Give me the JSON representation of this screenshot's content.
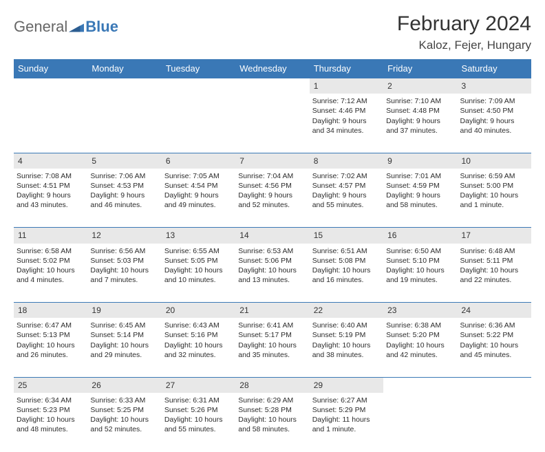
{
  "logo": {
    "text1": "General",
    "text2": "Blue"
  },
  "title": "February 2024",
  "location": "Kaloz, Fejer, Hungary",
  "colors": {
    "header_bg": "#3a78b6",
    "daynum_bg": "#e8e8e8",
    "rule": "#3a78b6"
  },
  "weekdays": [
    "Sunday",
    "Monday",
    "Tuesday",
    "Wednesday",
    "Thursday",
    "Friday",
    "Saturday"
  ],
  "weeks": [
    {
      "nums": [
        "",
        "",
        "",
        "",
        "1",
        "2",
        "3"
      ],
      "cells": [
        null,
        null,
        null,
        null,
        {
          "sunrise": "Sunrise: 7:12 AM",
          "sunset": "Sunset: 4:46 PM",
          "daylight1": "Daylight: 9 hours",
          "daylight2": "and 34 minutes."
        },
        {
          "sunrise": "Sunrise: 7:10 AM",
          "sunset": "Sunset: 4:48 PM",
          "daylight1": "Daylight: 9 hours",
          "daylight2": "and 37 minutes."
        },
        {
          "sunrise": "Sunrise: 7:09 AM",
          "sunset": "Sunset: 4:50 PM",
          "daylight1": "Daylight: 9 hours",
          "daylight2": "and 40 minutes."
        }
      ]
    },
    {
      "nums": [
        "4",
        "5",
        "6",
        "7",
        "8",
        "9",
        "10"
      ],
      "cells": [
        {
          "sunrise": "Sunrise: 7:08 AM",
          "sunset": "Sunset: 4:51 PM",
          "daylight1": "Daylight: 9 hours",
          "daylight2": "and 43 minutes."
        },
        {
          "sunrise": "Sunrise: 7:06 AM",
          "sunset": "Sunset: 4:53 PM",
          "daylight1": "Daylight: 9 hours",
          "daylight2": "and 46 minutes."
        },
        {
          "sunrise": "Sunrise: 7:05 AM",
          "sunset": "Sunset: 4:54 PM",
          "daylight1": "Daylight: 9 hours",
          "daylight2": "and 49 minutes."
        },
        {
          "sunrise": "Sunrise: 7:04 AM",
          "sunset": "Sunset: 4:56 PM",
          "daylight1": "Daylight: 9 hours",
          "daylight2": "and 52 minutes."
        },
        {
          "sunrise": "Sunrise: 7:02 AM",
          "sunset": "Sunset: 4:57 PM",
          "daylight1": "Daylight: 9 hours",
          "daylight2": "and 55 minutes."
        },
        {
          "sunrise": "Sunrise: 7:01 AM",
          "sunset": "Sunset: 4:59 PM",
          "daylight1": "Daylight: 9 hours",
          "daylight2": "and 58 minutes."
        },
        {
          "sunrise": "Sunrise: 6:59 AM",
          "sunset": "Sunset: 5:00 PM",
          "daylight1": "Daylight: 10 hours",
          "daylight2": "and 1 minute."
        }
      ]
    },
    {
      "nums": [
        "11",
        "12",
        "13",
        "14",
        "15",
        "16",
        "17"
      ],
      "cells": [
        {
          "sunrise": "Sunrise: 6:58 AM",
          "sunset": "Sunset: 5:02 PM",
          "daylight1": "Daylight: 10 hours",
          "daylight2": "and 4 minutes."
        },
        {
          "sunrise": "Sunrise: 6:56 AM",
          "sunset": "Sunset: 5:03 PM",
          "daylight1": "Daylight: 10 hours",
          "daylight2": "and 7 minutes."
        },
        {
          "sunrise": "Sunrise: 6:55 AM",
          "sunset": "Sunset: 5:05 PM",
          "daylight1": "Daylight: 10 hours",
          "daylight2": "and 10 minutes."
        },
        {
          "sunrise": "Sunrise: 6:53 AM",
          "sunset": "Sunset: 5:06 PM",
          "daylight1": "Daylight: 10 hours",
          "daylight2": "and 13 minutes."
        },
        {
          "sunrise": "Sunrise: 6:51 AM",
          "sunset": "Sunset: 5:08 PM",
          "daylight1": "Daylight: 10 hours",
          "daylight2": "and 16 minutes."
        },
        {
          "sunrise": "Sunrise: 6:50 AM",
          "sunset": "Sunset: 5:10 PM",
          "daylight1": "Daylight: 10 hours",
          "daylight2": "and 19 minutes."
        },
        {
          "sunrise": "Sunrise: 6:48 AM",
          "sunset": "Sunset: 5:11 PM",
          "daylight1": "Daylight: 10 hours",
          "daylight2": "and 22 minutes."
        }
      ]
    },
    {
      "nums": [
        "18",
        "19",
        "20",
        "21",
        "22",
        "23",
        "24"
      ],
      "cells": [
        {
          "sunrise": "Sunrise: 6:47 AM",
          "sunset": "Sunset: 5:13 PM",
          "daylight1": "Daylight: 10 hours",
          "daylight2": "and 26 minutes."
        },
        {
          "sunrise": "Sunrise: 6:45 AM",
          "sunset": "Sunset: 5:14 PM",
          "daylight1": "Daylight: 10 hours",
          "daylight2": "and 29 minutes."
        },
        {
          "sunrise": "Sunrise: 6:43 AM",
          "sunset": "Sunset: 5:16 PM",
          "daylight1": "Daylight: 10 hours",
          "daylight2": "and 32 minutes."
        },
        {
          "sunrise": "Sunrise: 6:41 AM",
          "sunset": "Sunset: 5:17 PM",
          "daylight1": "Daylight: 10 hours",
          "daylight2": "and 35 minutes."
        },
        {
          "sunrise": "Sunrise: 6:40 AM",
          "sunset": "Sunset: 5:19 PM",
          "daylight1": "Daylight: 10 hours",
          "daylight2": "and 38 minutes."
        },
        {
          "sunrise": "Sunrise: 6:38 AM",
          "sunset": "Sunset: 5:20 PM",
          "daylight1": "Daylight: 10 hours",
          "daylight2": "and 42 minutes."
        },
        {
          "sunrise": "Sunrise: 6:36 AM",
          "sunset": "Sunset: 5:22 PM",
          "daylight1": "Daylight: 10 hours",
          "daylight2": "and 45 minutes."
        }
      ]
    },
    {
      "nums": [
        "25",
        "26",
        "27",
        "28",
        "29",
        "",
        ""
      ],
      "cells": [
        {
          "sunrise": "Sunrise: 6:34 AM",
          "sunset": "Sunset: 5:23 PM",
          "daylight1": "Daylight: 10 hours",
          "daylight2": "and 48 minutes."
        },
        {
          "sunrise": "Sunrise: 6:33 AM",
          "sunset": "Sunset: 5:25 PM",
          "daylight1": "Daylight: 10 hours",
          "daylight2": "and 52 minutes."
        },
        {
          "sunrise": "Sunrise: 6:31 AM",
          "sunset": "Sunset: 5:26 PM",
          "daylight1": "Daylight: 10 hours",
          "daylight2": "and 55 minutes."
        },
        {
          "sunrise": "Sunrise: 6:29 AM",
          "sunset": "Sunset: 5:28 PM",
          "daylight1": "Daylight: 10 hours",
          "daylight2": "and 58 minutes."
        },
        {
          "sunrise": "Sunrise: 6:27 AM",
          "sunset": "Sunset: 5:29 PM",
          "daylight1": "Daylight: 11 hours",
          "daylight2": "and 1 minute."
        },
        null,
        null
      ]
    }
  ]
}
